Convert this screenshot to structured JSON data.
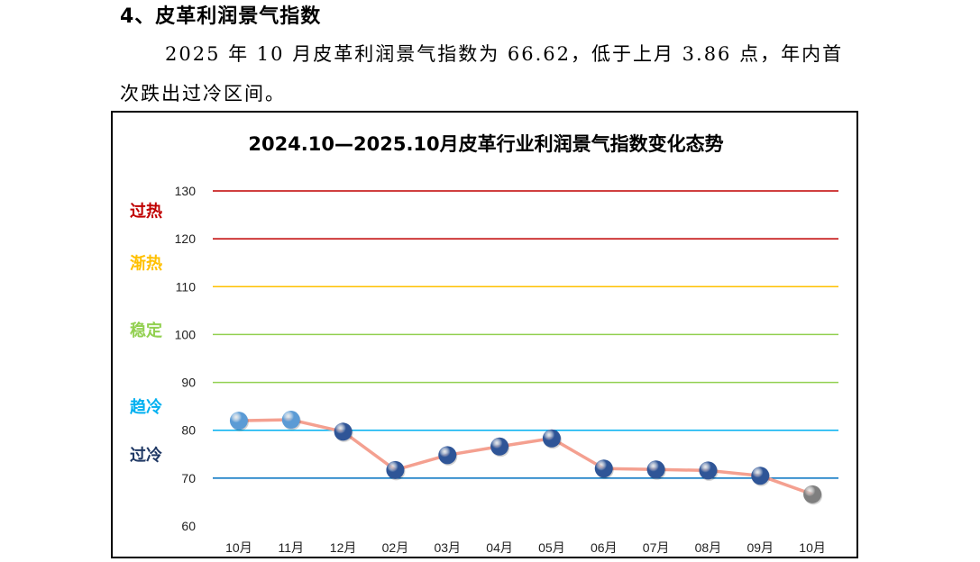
{
  "section": {
    "heading": "4、皮革利润景气指数",
    "paragraph": "2025 年 10 月皮革利润景气指数为 66.62，低于上月 3.86 点，年内首次跌出过冷区间。"
  },
  "chart_data": {
    "type": "line",
    "title": "2024.10—2025.10月皮革行业利润景气指数变化态势",
    "categories": [
      "10月",
      "11月",
      "12月",
      "02月",
      "03月",
      "04月",
      "05月",
      "06月",
      "07月",
      "08月",
      "09月",
      "10月"
    ],
    "series": [
      {
        "values": [
          82.0,
          82.2,
          79.7,
          71.7,
          74.8,
          76.6,
          78.3,
          72.0,
          71.8,
          71.6,
          70.5,
          66.62
        ]
      }
    ],
    "ylim": [
      60,
      130
    ],
    "yticks": [
      60,
      70,
      80,
      90,
      100,
      110,
      120,
      130
    ],
    "grid": true,
    "threshold_lines": [
      {
        "value": 130,
        "color": "#c00000"
      },
      {
        "value": 120,
        "color": "#c00000"
      },
      {
        "value": 110,
        "color": "#ffc000"
      },
      {
        "value": 100,
        "color": "#92d050"
      },
      {
        "value": 90,
        "color": "#92d050"
      },
      {
        "value": 80,
        "color": "#00b0f0"
      },
      {
        "value": 70,
        "color": "#0070c0"
      }
    ],
    "zones": [
      {
        "label": "过热",
        "value": 126,
        "color": "#c00000"
      },
      {
        "label": "渐热",
        "value": 115,
        "color": "#ffc000"
      },
      {
        "label": "稳定",
        "value": 101,
        "color": "#92d050"
      },
      {
        "label": "趋冷",
        "value": 85,
        "color": "#00b0f0"
      },
      {
        "label": "过冷",
        "value": 75,
        "color": "#1f3864"
      }
    ],
    "line_color": "#f4a090",
    "marker_colors": [
      "#5b9bd5",
      "#5b9bd5",
      "#2f5597",
      "#2f5597",
      "#2f5597",
      "#2f5597",
      "#2f5597",
      "#2f5597",
      "#2f5597",
      "#2f5597",
      "#2f5597",
      "#7f7f7f"
    ]
  }
}
